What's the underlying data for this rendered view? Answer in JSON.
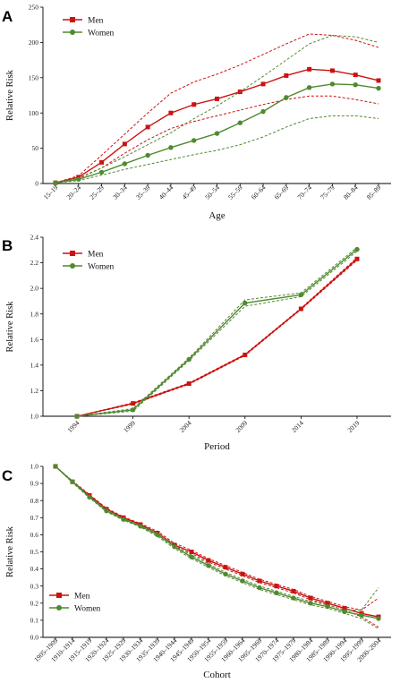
{
  "colors": {
    "men": "#cc1111",
    "women": "#4e8a2e",
    "axis": "#000000"
  },
  "chart_data": [
    {
      "panel": "A",
      "type": "line",
      "xlabel": "Age",
      "ylabel": "Relative Risk",
      "ylim": [
        0,
        250
      ],
      "yticks": [
        "0",
        "50",
        "100",
        "150",
        "200",
        "250"
      ],
      "categories": [
        "15–19",
        "20–24",
        "25–29",
        "30–34",
        "35–39",
        "40–44",
        "45–49",
        "50–54",
        "55–59",
        "60–64",
        "65–69",
        "70–74",
        "75–79",
        "80–84",
        "85–89"
      ],
      "legend": {
        "placement": "top-left"
      },
      "series": [
        {
          "name": "Men",
          "color": "#cc1111",
          "marker": "square",
          "values": [
            1,
            9,
            30,
            56,
            80,
            100,
            112,
            120,
            130,
            141,
            153,
            162,
            160,
            154,
            146
          ],
          "lower": [
            1,
            7,
            22,
            43,
            62,
            78,
            88,
            96,
            104,
            112,
            119,
            124,
            124,
            119,
            113
          ],
          "upper": [
            1,
            11,
            40,
            70,
            100,
            128,
            144,
            155,
            168,
            183,
            198,
            212,
            210,
            203,
            193
          ]
        },
        {
          "name": "Women",
          "color": "#4e8a2e",
          "marker": "circle",
          "values": [
            1,
            6,
            16,
            28,
            40,
            51,
            61,
            71,
            86,
            102,
            122,
            136,
            141,
            140,
            135
          ],
          "lower": [
            1,
            4,
            12,
            20,
            27,
            34,
            41,
            47,
            55,
            66,
            80,
            92,
            96,
            96,
            92
          ],
          "upper": [
            1,
            8,
            22,
            38,
            55,
            72,
            92,
            110,
            130,
            152,
            175,
            198,
            210,
            208,
            200
          ]
        }
      ]
    },
    {
      "panel": "B",
      "type": "line",
      "xlabel": "Period",
      "ylabel": "Relative Risk",
      "ylim": [
        1.0,
        2.4
      ],
      "yticks": [
        "1.0",
        "1.2",
        "1.4",
        "1.6",
        "1.8",
        "2.0",
        "2.2",
        "2.4"
      ],
      "categories": [
        "1994",
        "1999",
        "2004",
        "2009",
        "2014",
        "2019"
      ],
      "legend": {
        "placement": "top-left"
      },
      "series": [
        {
          "name": "Men",
          "color": "#cc1111",
          "marker": "square",
          "values": [
            1.0,
            1.1,
            1.255,
            1.48,
            1.84,
            2.23
          ],
          "lower": [
            1.0,
            1.095,
            1.25,
            1.475,
            1.835,
            2.22
          ],
          "upper": [
            1.0,
            1.105,
            1.26,
            1.485,
            1.845,
            2.24
          ]
        },
        {
          "name": "Women",
          "color": "#4e8a2e",
          "marker": "circle",
          "values": [
            1.0,
            1.05,
            1.445,
            1.885,
            1.95,
            2.305
          ],
          "lower": [
            1.0,
            1.04,
            1.435,
            1.86,
            1.935,
            2.29
          ],
          "upper": [
            1.0,
            1.06,
            1.455,
            1.91,
            1.965,
            2.32
          ]
        }
      ]
    },
    {
      "panel": "C",
      "type": "line",
      "xlabel": "Cohort",
      "ylabel": "Relative Risk",
      "ylim": [
        0.0,
        1.0
      ],
      "yticks": [
        "0.0",
        "0.1",
        "0.2",
        "0.3",
        "0.4",
        "0.5",
        "0.6",
        "0.7",
        "0.8",
        "0.9",
        "1.0"
      ],
      "categories": [
        "1905–1909",
        "1910–1914",
        "1915–1919",
        "1920–1924",
        "1925–1929",
        "1930–1934",
        "1935–1939",
        "1940–1944",
        "1945–1949",
        "1950–1954",
        "1955–1959",
        "1960–1964",
        "1965–1969",
        "1970–1974",
        "1975–1979",
        "1980–1984",
        "1985–1989",
        "1990–1994",
        "1995–1999",
        "2000–2004"
      ],
      "legend": {
        "placement": "bottom-left"
      },
      "series": [
        {
          "name": "Men",
          "color": "#cc1111",
          "marker": "square",
          "values": [
            1.0,
            0.91,
            0.83,
            0.75,
            0.7,
            0.66,
            0.61,
            0.54,
            0.5,
            0.45,
            0.41,
            0.37,
            0.33,
            0.3,
            0.27,
            0.23,
            0.2,
            0.17,
            0.14,
            0.12
          ],
          "lower": [
            1.0,
            0.905,
            0.825,
            0.745,
            0.695,
            0.655,
            0.6,
            0.53,
            0.49,
            0.44,
            0.4,
            0.36,
            0.32,
            0.29,
            0.26,
            0.22,
            0.19,
            0.16,
            0.12,
            0.06
          ],
          "upper": [
            1.0,
            0.915,
            0.835,
            0.755,
            0.705,
            0.665,
            0.62,
            0.55,
            0.51,
            0.46,
            0.42,
            0.38,
            0.34,
            0.31,
            0.28,
            0.24,
            0.21,
            0.18,
            0.16,
            0.23
          ]
        },
        {
          "name": "Women",
          "color": "#4e8a2e",
          "marker": "circle",
          "values": [
            1.0,
            0.91,
            0.82,
            0.74,
            0.69,
            0.65,
            0.6,
            0.53,
            0.47,
            0.42,
            0.37,
            0.33,
            0.29,
            0.26,
            0.23,
            0.2,
            0.18,
            0.15,
            0.13,
            0.11
          ],
          "lower": [
            1.0,
            0.905,
            0.815,
            0.735,
            0.685,
            0.645,
            0.59,
            0.52,
            0.46,
            0.41,
            0.36,
            0.32,
            0.28,
            0.25,
            0.22,
            0.19,
            0.17,
            0.14,
            0.11,
            0.05
          ],
          "upper": [
            1.0,
            0.915,
            0.825,
            0.745,
            0.695,
            0.655,
            0.61,
            0.54,
            0.48,
            0.43,
            0.38,
            0.34,
            0.3,
            0.27,
            0.24,
            0.21,
            0.19,
            0.16,
            0.16,
            0.29
          ]
        }
      ]
    }
  ]
}
